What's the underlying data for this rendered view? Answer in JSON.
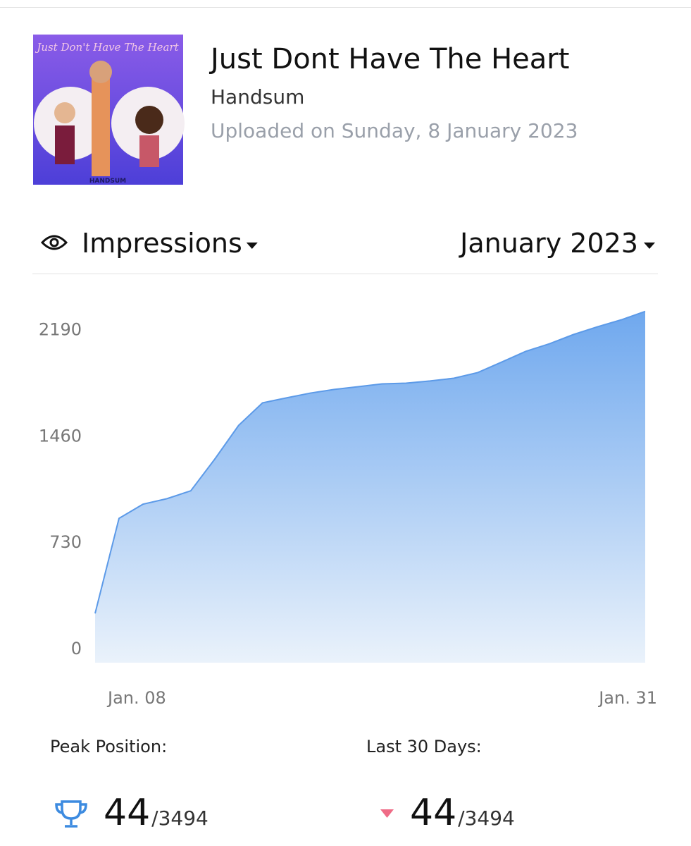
{
  "header": {
    "cover_title": "Just Don't Have The Heart",
    "cover_artist": "HANDSUM",
    "title": "Just Dont Have The Heart",
    "artist": "Handsum",
    "uploaded": "Uploaded on Sunday, 8 January 2023"
  },
  "controls": {
    "metric": "Impressions",
    "period": "January 2023"
  },
  "chart_data": {
    "type": "area",
    "categories": [
      "Jan. 08",
      null,
      null,
      null,
      null,
      null,
      null,
      null,
      null,
      null,
      null,
      null,
      null,
      null,
      null,
      null,
      null,
      null,
      null,
      null,
      null,
      null,
      null,
      "Jan. 31"
    ],
    "values": [
      338,
      991,
      1088,
      1126,
      1180,
      1397,
      1629,
      1784,
      1818,
      1851,
      1876,
      1895,
      1914,
      1919,
      1934,
      1953,
      1992,
      2064,
      2137,
      2190,
      2253,
      2306,
      2354,
      2412
    ],
    "color": "#5c9ae8",
    "ylim": [
      0,
      2420
    ],
    "yticks": [
      0,
      730,
      1460,
      2190
    ],
    "grid": false
  },
  "stats": [
    {
      "label": "Peak Position:",
      "value": "44",
      "total": "/3494"
    },
    {
      "label": "Last 30 Days:",
      "value": "44",
      "total": "/3494"
    }
  ]
}
